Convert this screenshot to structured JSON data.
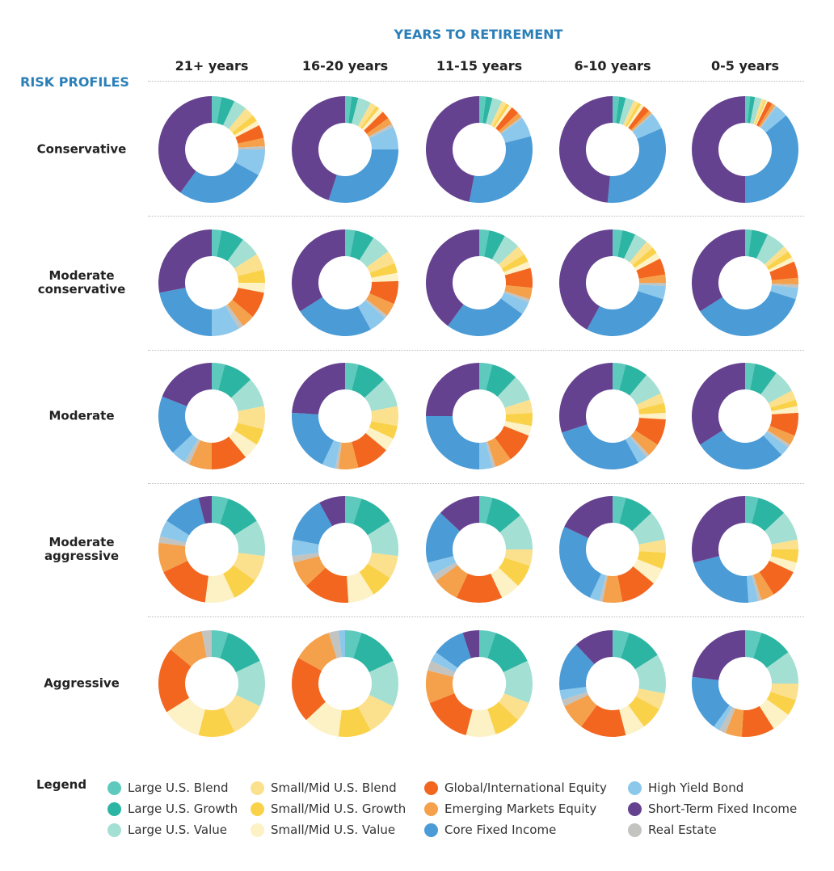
{
  "chart_data": {
    "type": "pie",
    "variant": "donut-grid",
    "title": "YEARS TO RETIREMENT",
    "row_axis_title": "RISK PROFILES",
    "columns": [
      "21+ years",
      "16-20 years",
      "11-15 years",
      "6-10 years",
      "0-5 years"
    ],
    "rows": [
      "Conservative",
      "Moderate conservative",
      "Moderate",
      "Moderate aggressive",
      "Aggressive"
    ],
    "legend_title": "Legend",
    "series": [
      {
        "name": "Large U.S. Blend",
        "color": "#5ec9bd"
      },
      {
        "name": "Large U.S. Growth",
        "color": "#2db5a3"
      },
      {
        "name": "Large U.S. Value",
        "color": "#a3dfd3"
      },
      {
        "name": "Small/Mid U.S. Blend",
        "color": "#fbe08e"
      },
      {
        "name": "Small/Mid U.S. Growth",
        "color": "#fad24a"
      },
      {
        "name": "Small/Mid U.S. Value",
        "color": "#fdf1c6"
      },
      {
        "name": "Global/International Equity",
        "color": "#f2661f"
      },
      {
        "name": "Emerging Markets Equity",
        "color": "#f5a04a"
      },
      {
        "name": "Real Estate",
        "color": "#c3c3bf"
      },
      {
        "name": "High Yield Bond",
        "color": "#8cc8ec"
      },
      {
        "name": "Core Fixed Income",
        "color": "#4a9bd6"
      },
      {
        "name": "Short-Term Fixed Income",
        "color": "#65428f"
      }
    ],
    "legend_order": [
      0,
      3,
      6,
      9,
      1,
      4,
      7,
      11,
      2,
      5,
      10,
      8
    ],
    "values_percent": [
      [
        [
          3,
          4,
          4,
          3,
          2,
          1.5,
          4,
          2.5,
          1,
          8,
          27,
          40
        ],
        [
          2,
          2,
          4,
          2,
          1,
          1.5,
          2.5,
          2,
          1,
          7,
          30,
          45
        ],
        [
          2,
          2,
          3,
          1.5,
          1,
          1,
          2.5,
          1.5,
          0.5,
          6,
          32,
          47
        ],
        [
          2,
          2,
          2.5,
          1.5,
          1,
          1,
          2,
          1,
          0.5,
          5,
          33,
          48.5
        ],
        [
          1.5,
          1.5,
          2,
          1,
          0.5,
          0.5,
          1.5,
          1,
          0.5,
          4,
          36,
          50
        ]
      ],
      [
        [
          3,
          7,
          6,
          5,
          4,
          3,
          8,
          4,
          1.5,
          8.5,
          22,
          28
        ],
        [
          3,
          6,
          6,
          4,
          3,
          2.5,
          7,
          4,
          1,
          5.5,
          24,
          34
        ],
        [
          3,
          5,
          5,
          3,
          2.5,
          2,
          6,
          3.5,
          1,
          4,
          25,
          40
        ],
        [
          3,
          4,
          4,
          2.5,
          2,
          2,
          5,
          2.5,
          1,
          4,
          28,
          42
        ],
        [
          2,
          5,
          6,
          2,
          2,
          1.5,
          5,
          2,
          1,
          3.5,
          36,
          34
        ]
      ],
      [
        [
          4,
          9,
          9,
          7,
          5,
          5,
          11,
          7,
          1.5,
          4.5,
          18,
          19
        ],
        [
          4,
          9,
          9,
          6,
          4,
          4,
          10,
          6,
          1,
          4,
          19,
          24
        ],
        [
          4,
          8,
          8,
          4,
          4,
          3,
          9,
          5,
          1,
          4,
          25,
          25
        ],
        [
          4,
          7,
          7,
          3,
          3,
          2,
          8,
          4,
          1,
          3,
          28,
          30
        ],
        [
          3,
          7,
          7,
          3,
          2,
          2,
          7,
          3,
          1,
          3,
          28,
          34
        ]
      ],
      [
        [
          5,
          11,
          11,
          8,
          8,
          9,
          16,
          9,
          2,
          5,
          12,
          4
        ],
        [
          5,
          11,
          11,
          7,
          7,
          8,
          14,
          8,
          2,
          5,
          14,
          8
        ],
        [
          4,
          10,
          11,
          5,
          7,
          6,
          14,
          8,
          2,
          4,
          16,
          13
        ],
        [
          4,
          9,
          9,
          4,
          5,
          5,
          11,
          6,
          1,
          3,
          25,
          18
        ],
        [
          4,
          9,
          9,
          3,
          4,
          3,
          9,
          4,
          1,
          3,
          22,
          29
        ]
      ],
      [
        [
          5,
          13,
          14,
          11,
          11,
          12,
          20,
          11,
          3,
          0,
          0,
          0
        ],
        [
          5,
          13,
          14,
          10,
          10,
          11,
          20,
          12,
          3,
          2,
          0,
          0
        ],
        [
          5,
          13,
          13,
          6,
          8,
          9,
          15,
          10,
          3,
          3,
          10,
          5
        ],
        [
          5,
          11,
          12,
          5,
          7,
          6,
          14,
          8,
          2,
          3,
          15,
          12
        ],
        [
          5,
          10,
          10,
          5,
          5,
          6,
          10,
          5,
          2,
          2,
          17,
          23
        ]
      ]
    ]
  }
}
